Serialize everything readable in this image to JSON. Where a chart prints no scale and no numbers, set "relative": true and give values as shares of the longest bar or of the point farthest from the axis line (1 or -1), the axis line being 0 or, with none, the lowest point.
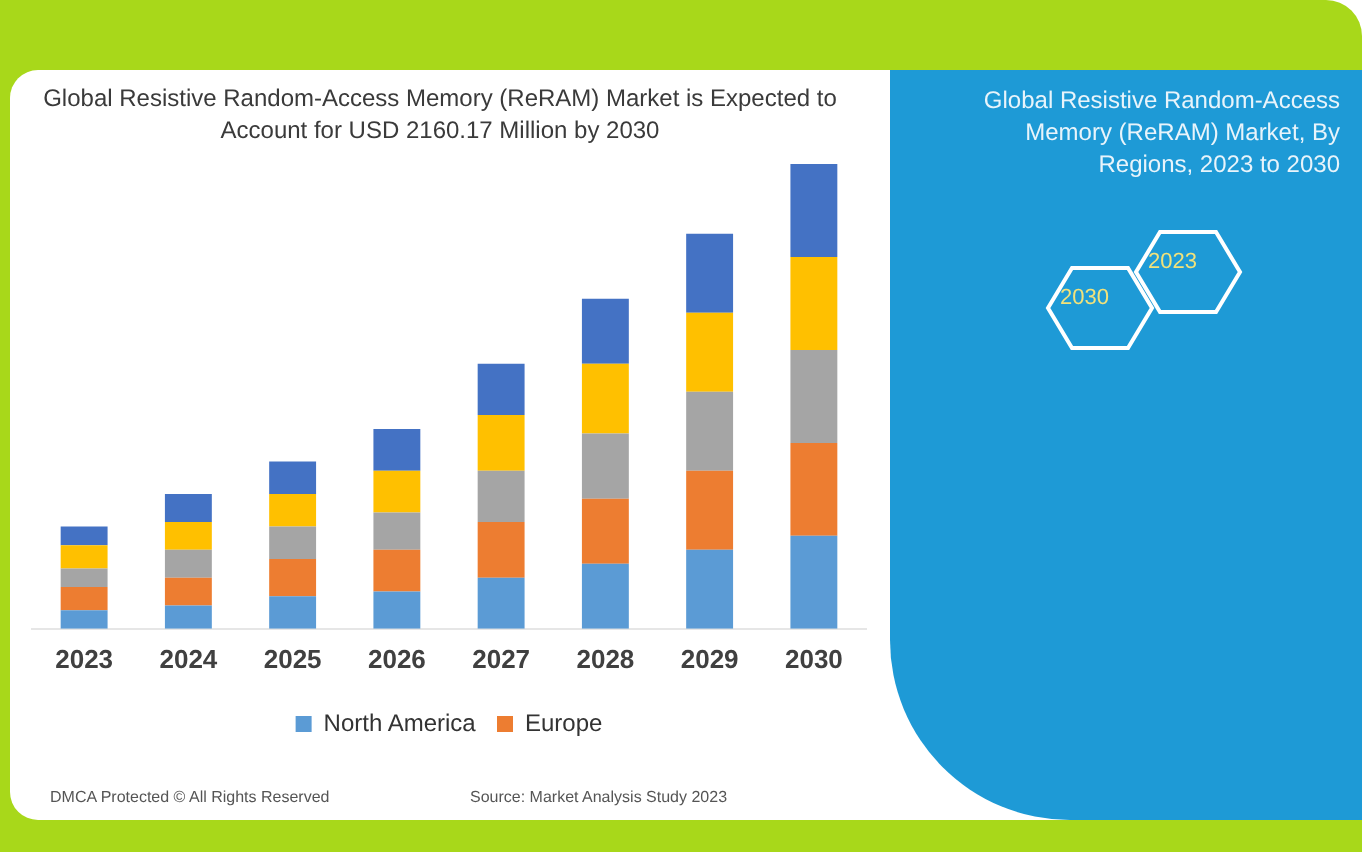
{
  "chart_data": {
    "type": "bar",
    "title": "Global Resistive Random-Access Memory (ReRAM) Market is Expected to Account for USD 2160.17 Million by 2030",
    "subtitle": "Global Resistive Random-Access Memory (ReRAM) Market, By Regions, 2023 to 2030",
    "annotations": [
      "2023",
      "2030",
      "DMCA Protected © All Rights Reserved",
      "Source: Market Analysis Study 2023"
    ],
    "categories": [
      "2023",
      "2024",
      "2025",
      "2026",
      "2027",
      "2028",
      "2029",
      "2030"
    ],
    "stacked": true,
    "relative": true,
    "legend": "bottom",
    "series": [
      {
        "name": "North America",
        "color": "#5b9bd5",
        "values": [
          0.04,
          0.05,
          0.07,
          0.08,
          0.11,
          0.14,
          0.17,
          0.2
        ]
      },
      {
        "name": "Europe",
        "color": "#ed7d31",
        "values": [
          0.05,
          0.06,
          0.08,
          0.09,
          0.12,
          0.14,
          0.17,
          0.2
        ]
      },
      {
        "color": "#a5a5a5",
        "values": [
          0.04,
          0.06,
          0.07,
          0.08,
          0.11,
          0.14,
          0.17,
          0.2
        ]
      },
      {
        "color": "#ffc000",
        "values": [
          0.05,
          0.06,
          0.07,
          0.09,
          0.12,
          0.15,
          0.17,
          0.2
        ]
      },
      {
        "color": "#4472c4",
        "values": [
          0.04,
          0.06,
          0.07,
          0.09,
          0.11,
          0.14,
          0.17,
          0.2
        ]
      }
    ]
  }
}
